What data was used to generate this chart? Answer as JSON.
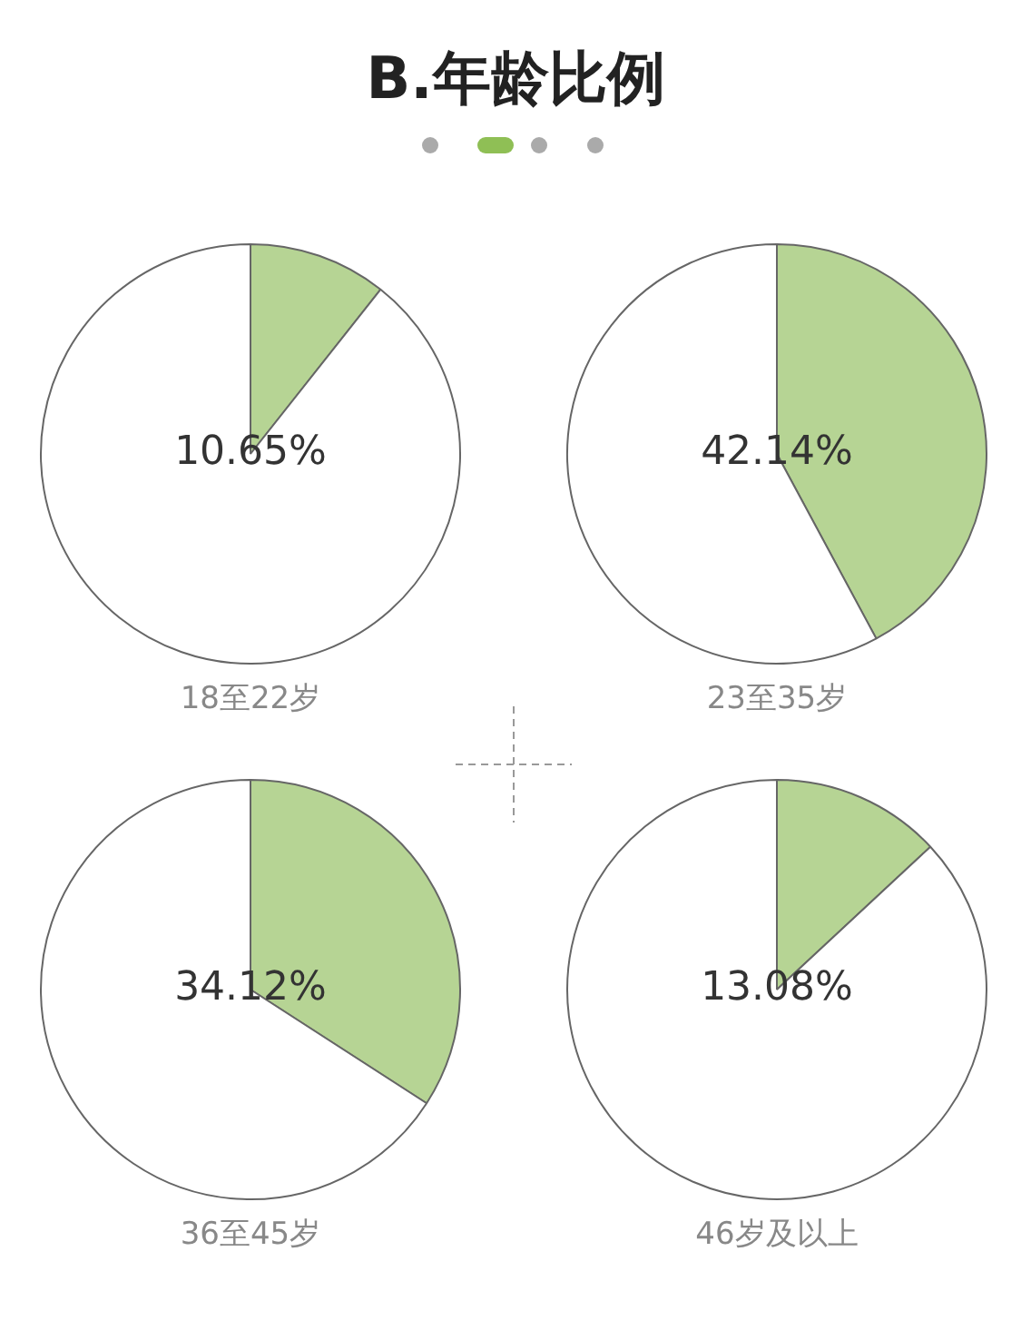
{
  "chart_data": [
    {
      "type": "pie",
      "title": "18至22岁",
      "annotations": [
        "B.年龄比例"
      ],
      "categories": [
        null,
        null
      ],
      "values": [
        10.65,
        89.35
      ],
      "colors": [
        "#b6d494",
        "#ffffff"
      ],
      "value_labels": [
        "10.65%",
        null
      ]
    },
    {
      "type": "pie",
      "title": "23至35岁",
      "categories": [
        null,
        null
      ],
      "values": [
        42.14,
        57.86
      ],
      "colors": [
        "#b6d494",
        "#ffffff"
      ],
      "value_labels": [
        "42.14%",
        null
      ]
    },
    {
      "type": "pie",
      "title": "36至45岁",
      "categories": [
        null,
        null
      ],
      "values": [
        34.12,
        65.88
      ],
      "colors": [
        "#b6d494",
        "#ffffff"
      ],
      "value_labels": [
        "34.12%",
        null
      ]
    },
    {
      "type": "pie",
      "title": "46岁及以上",
      "categories": [
        null,
        null
      ],
      "values": [
        13.08,
        86.92
      ],
      "colors": [
        "#b6d494",
        "#ffffff"
      ],
      "value_labels": [
        "13.08%",
        null
      ]
    }
  ]
}
